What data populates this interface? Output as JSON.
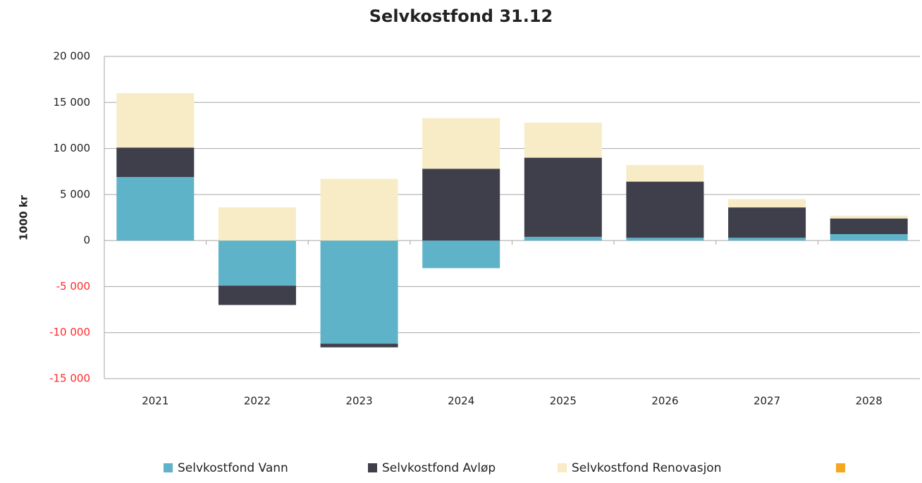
{
  "chart_data": {
    "type": "stacked_bar",
    "title": "Selvkostfond 31.12",
    "y_label": "1000 kr",
    "categories": [
      "2021",
      "2022",
      "2023",
      "2024",
      "2025",
      "2026",
      "2027",
      "2028"
    ],
    "series": [
      {
        "name": "Selvkostfond Vann",
        "color": "#5fb3c9",
        "values": [
          6900,
          -4900,
          -11200,
          -3000,
          400,
          300,
          300,
          700
        ]
      },
      {
        "name": "Selvkostfond Avløp",
        "color": "#3f3f4b",
        "values": [
          3200,
          -2100,
          -400,
          7800,
          8600,
          6100,
          3300,
          1700
        ]
      },
      {
        "name": "Selvkostfond Renovasjon",
        "color": "#f7ecc6",
        "values": [
          5900,
          3600,
          6700,
          5500,
          3800,
          1800,
          900,
          300
        ]
      }
    ],
    "ylim": [
      -15000,
      20000
    ],
    "yticks": [
      {
        "value": -15000,
        "label": "-15 000"
      },
      {
        "value": -10000,
        "label": "-10 000"
      },
      {
        "value": -5000,
        "label": "-5 000"
      },
      0,
      {
        "value": 5000,
        "label": "5 000"
      },
      {
        "value": 10000,
        "label": "10 000"
      },
      {
        "value": 15000,
        "label": "15 000"
      },
      {
        "value": 20000,
        "label": "20 000"
      }
    ],
    "grid": true
  }
}
